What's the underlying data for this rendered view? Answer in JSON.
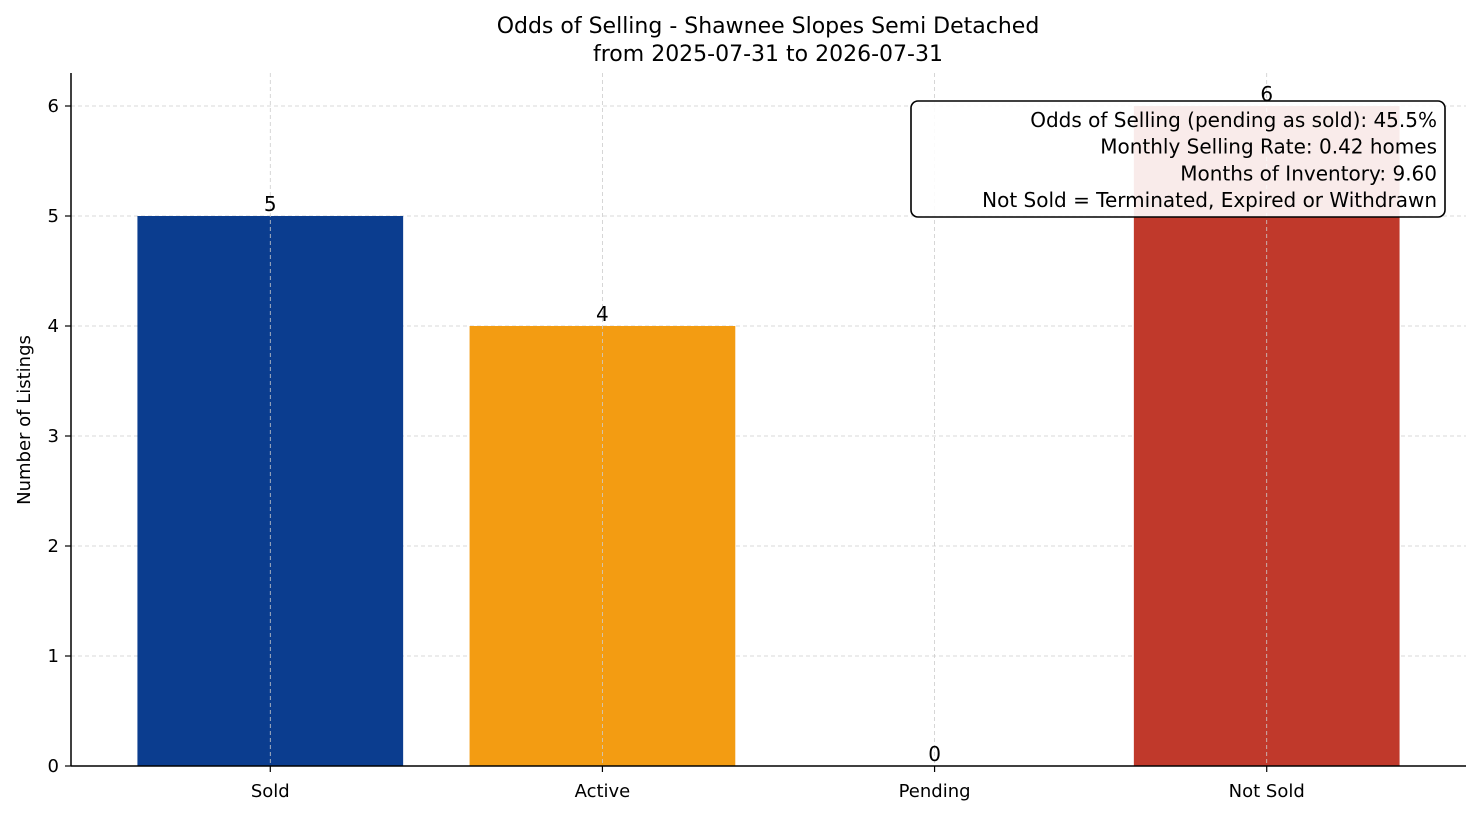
{
  "chart_data": {
    "type": "bar",
    "title": "Odds of Selling - Shawnee Slopes Semi Detached",
    "subtitle": "from 2025-07-31 to 2026-07-31",
    "xlabel": "",
    "ylabel": "Number of Listings",
    "categories": [
      "Sold",
      "Active",
      "Pending",
      "Not Sold"
    ],
    "values": [
      5,
      4,
      0,
      6
    ],
    "data_labels": [
      "5",
      "4",
      "0",
      "6"
    ],
    "colors": [
      "#0b3d8f",
      "#f39c12",
      "#f39c12",
      "#c0392b"
    ],
    "ylim": [
      0,
      6.3
    ],
    "yticks": [
      0,
      1,
      2,
      3,
      4,
      5,
      6
    ],
    "grid": true,
    "annotation_placement": "top-right",
    "annotation_lines": [
      "Odds of Selling (pending as sold): 45.5%",
      "Monthly Selling Rate: 0.42 homes",
      "Months of Inventory: 9.60",
      "Not Sold = Terminated, Expired or Withdrawn"
    ]
  }
}
